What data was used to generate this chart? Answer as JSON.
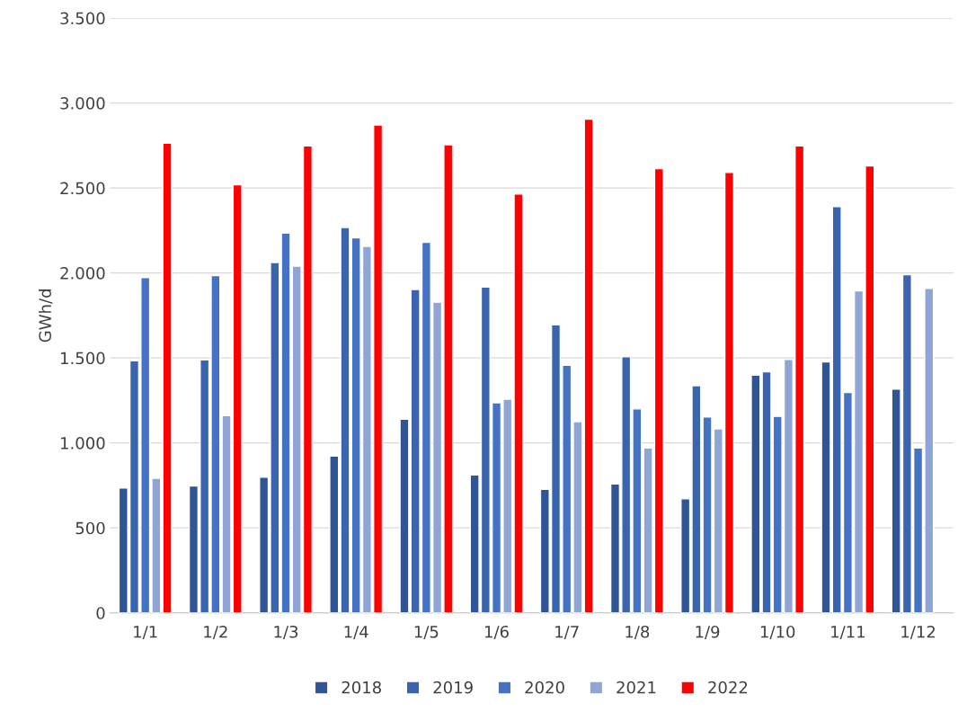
{
  "chart_data": {
    "type": "bar",
    "ylabel": "GWh/d",
    "categories": [
      "1/1",
      "1/2",
      "1/3",
      "1/4",
      "1/5",
      "1/6",
      "1/7",
      "1/8",
      "1/9",
      "1/10",
      "1/11",
      "1/12"
    ],
    "series": [
      {
        "name": "2018",
        "color": "#2f5597",
        "values": [
          735,
          747,
          798,
          923,
          1139,
          812,
          727,
          758,
          671,
          1398,
          1477,
          1317
        ]
      },
      {
        "name": "2019",
        "color": "#3a64ad",
        "values": [
          1483,
          1489,
          2061,
          2267,
          1903,
          1917,
          1695,
          1507,
          1337,
          1418,
          2390,
          1990
        ]
      },
      {
        "name": "2020",
        "color": "#4472c4",
        "values": [
          1972,
          1984,
          2234,
          2206,
          2180,
          1236,
          1457,
          1200,
          1152,
          1156,
          1297,
          970
        ]
      },
      {
        "name": "2021",
        "color": "#8fa5d6",
        "values": [
          792,
          1160,
          2040,
          2156,
          1828,
          1257,
          1125,
          970,
          1083,
          1491,
          1895,
          1909
        ]
      },
      {
        "name": "2022",
        "color": "#ff0000",
        "values": [
          2764,
          2519,
          2747,
          2871,
          2754,
          2465,
          2905,
          2614,
          2592,
          2747,
          2630,
          null
        ]
      }
    ],
    "ylim": [
      0,
      3500
    ],
    "yticks": [
      0,
      500,
      {
        "value": 1000,
        "label": "1.000"
      },
      {
        "value": 1500,
        "label": "1.500"
      },
      {
        "value": 2000,
        "label": "2.000"
      },
      {
        "value": 2500,
        "label": "2.500"
      },
      {
        "value": 3000,
        "label": "3.000"
      },
      {
        "value": 3500,
        "label": "3.500"
      }
    ],
    "grid": "y",
    "legend": "bottom"
  }
}
